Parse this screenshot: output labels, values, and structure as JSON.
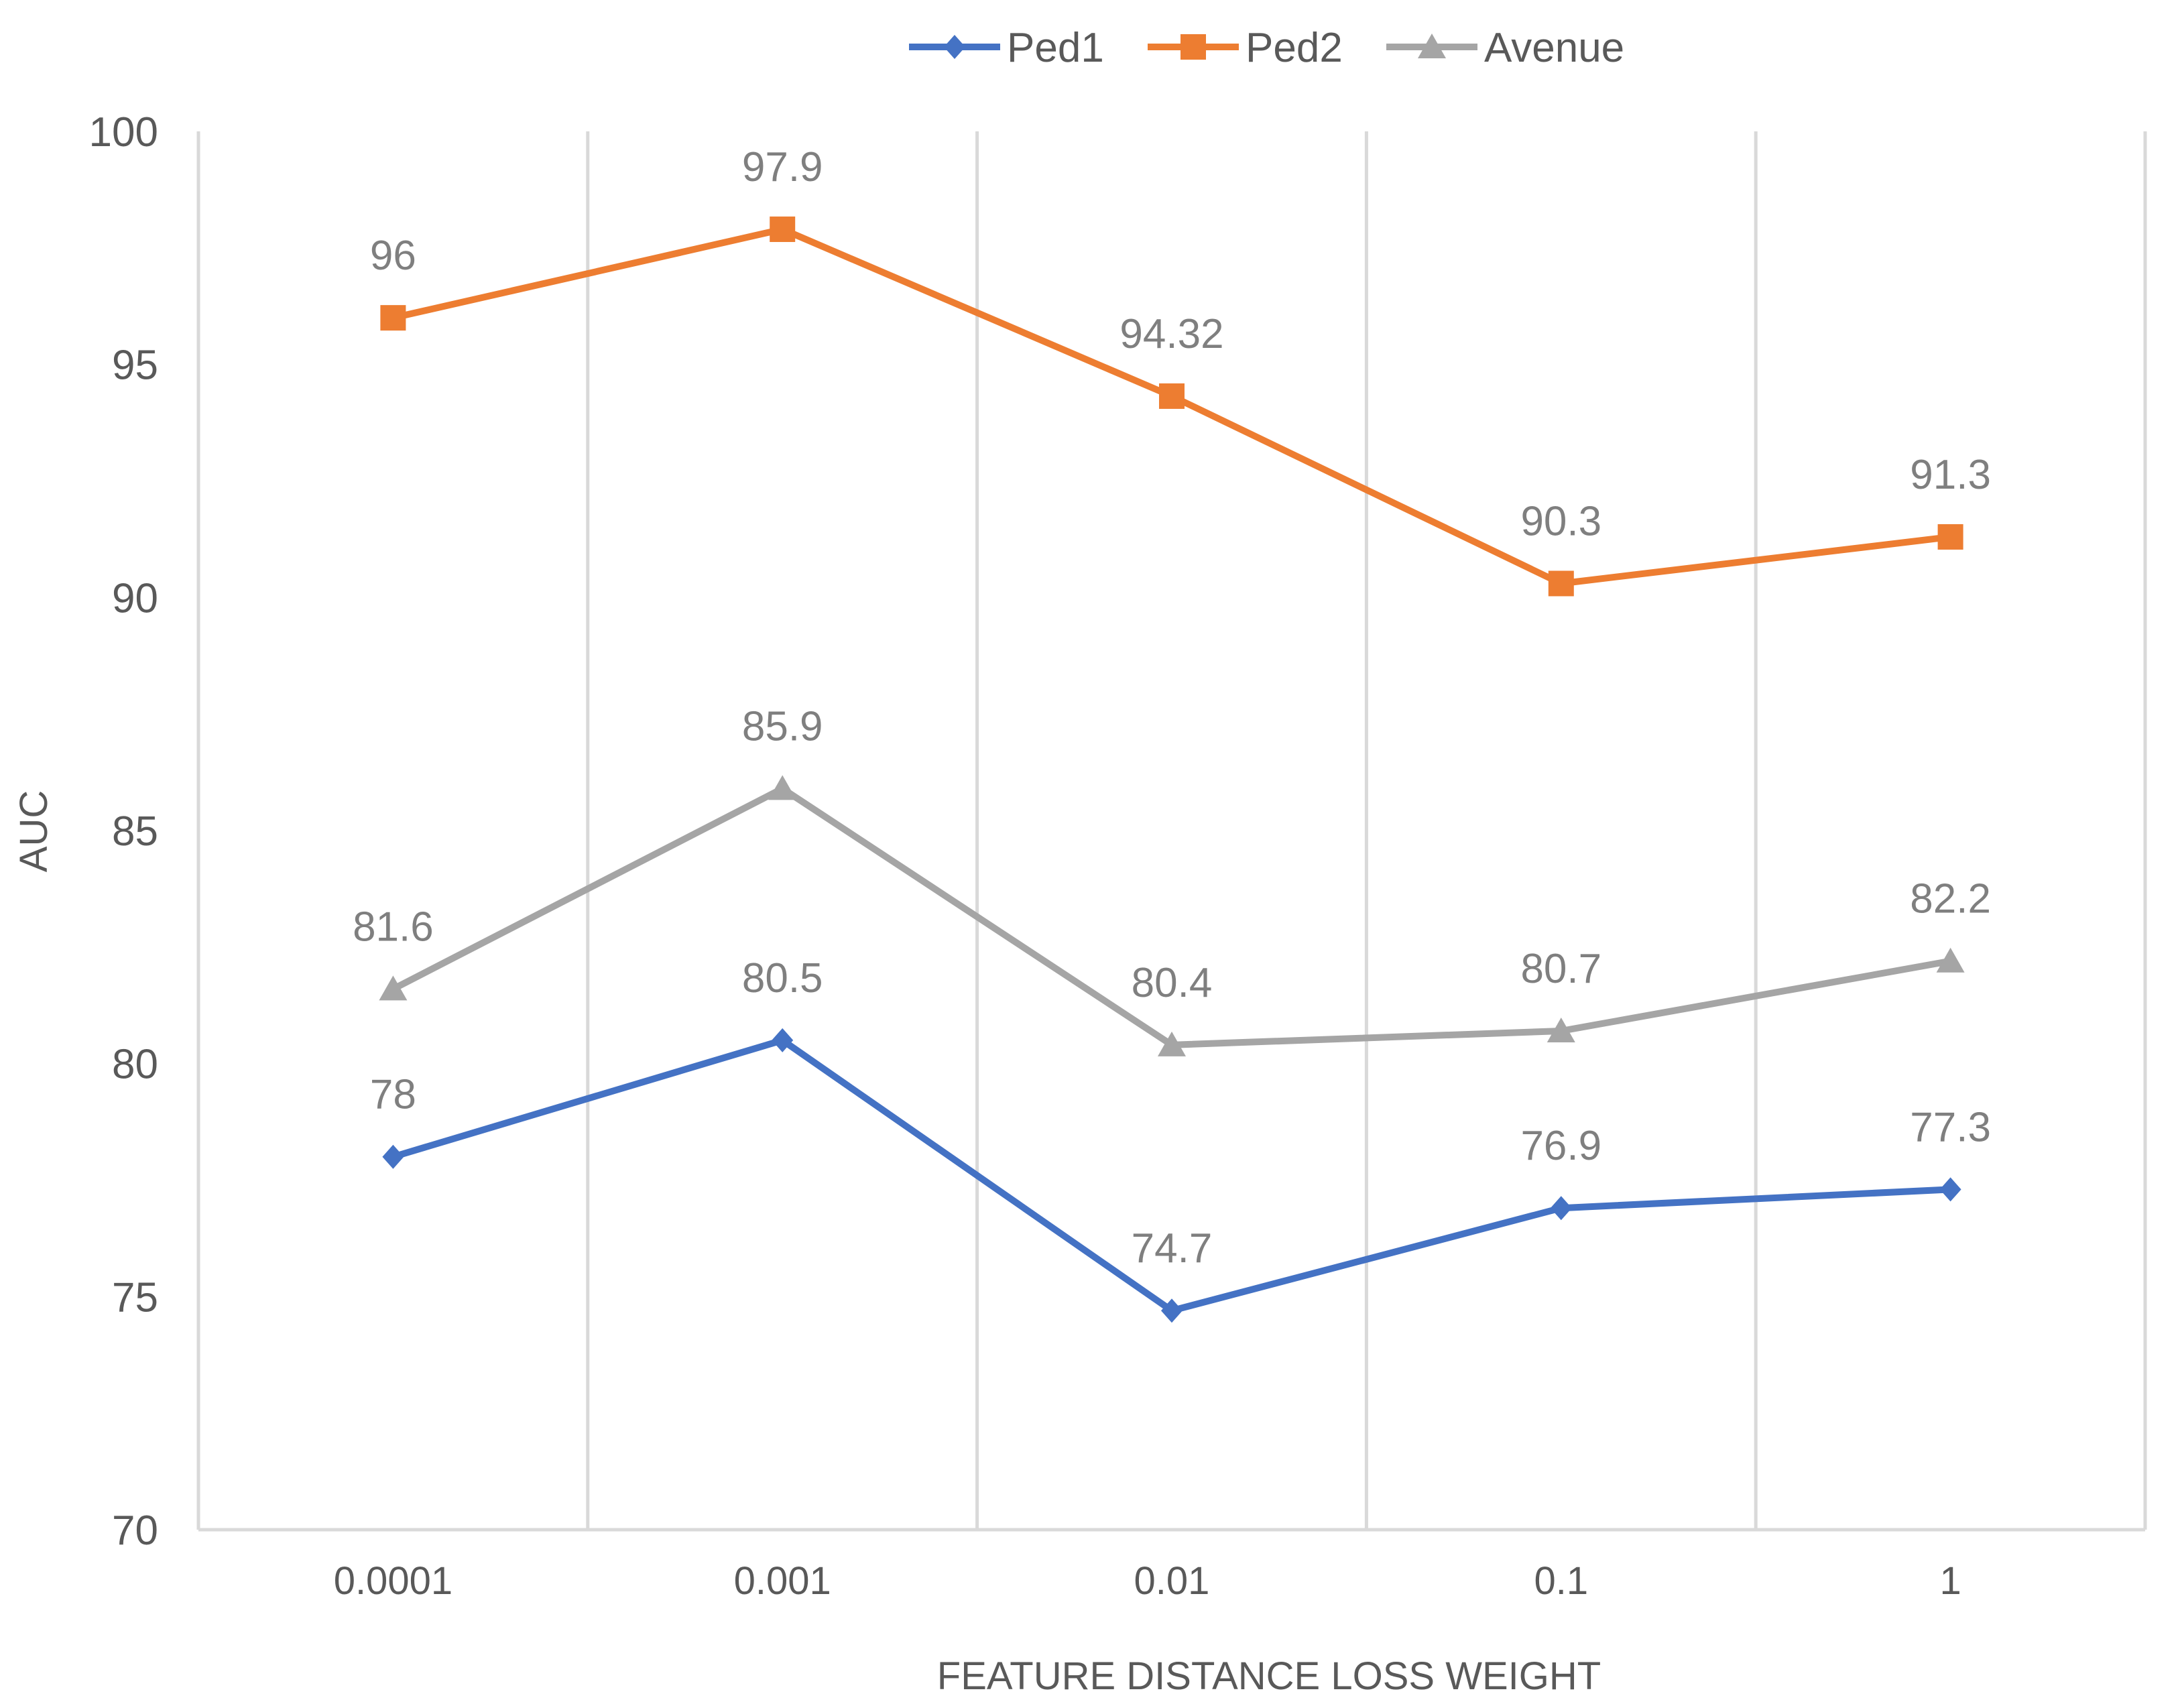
{
  "chart_data": {
    "type": "line",
    "title": "",
    "xlabel": "FEATURE DISTANCE LOSS WEIGHT",
    "ylabel": "AUC",
    "categories": [
      "0.0001",
      "0.001",
      "0.01",
      "0.1",
      "1"
    ],
    "ylim": [
      70,
      100
    ],
    "yticks": [
      70,
      75,
      80,
      85,
      90,
      95,
      100
    ],
    "grid": "vertical",
    "legend": "top-center",
    "series": [
      {
        "name": "Ped1",
        "color": "#4472C4",
        "marker": "diamond",
        "values": [
          78,
          80.5,
          74.7,
          76.9,
          77.3
        ],
        "labels": [
          "78",
          "80.5",
          "74.7",
          "76.9",
          "77.3"
        ]
      },
      {
        "name": "Ped2",
        "color": "#ED7D31",
        "marker": "square",
        "values": [
          96,
          97.9,
          94.32,
          90.3,
          91.3
        ],
        "labels": [
          "96",
          "97.9",
          "94.32",
          "90.3",
          "91.3"
        ]
      },
      {
        "name": "Avenue",
        "color": "#A5A5A5",
        "marker": "triangle",
        "values": [
          81.6,
          85.9,
          80.4,
          80.7,
          82.2
        ],
        "labels": [
          "81.6",
          "85.9",
          "80.4",
          "80.7",
          "82.2"
        ]
      }
    ]
  }
}
